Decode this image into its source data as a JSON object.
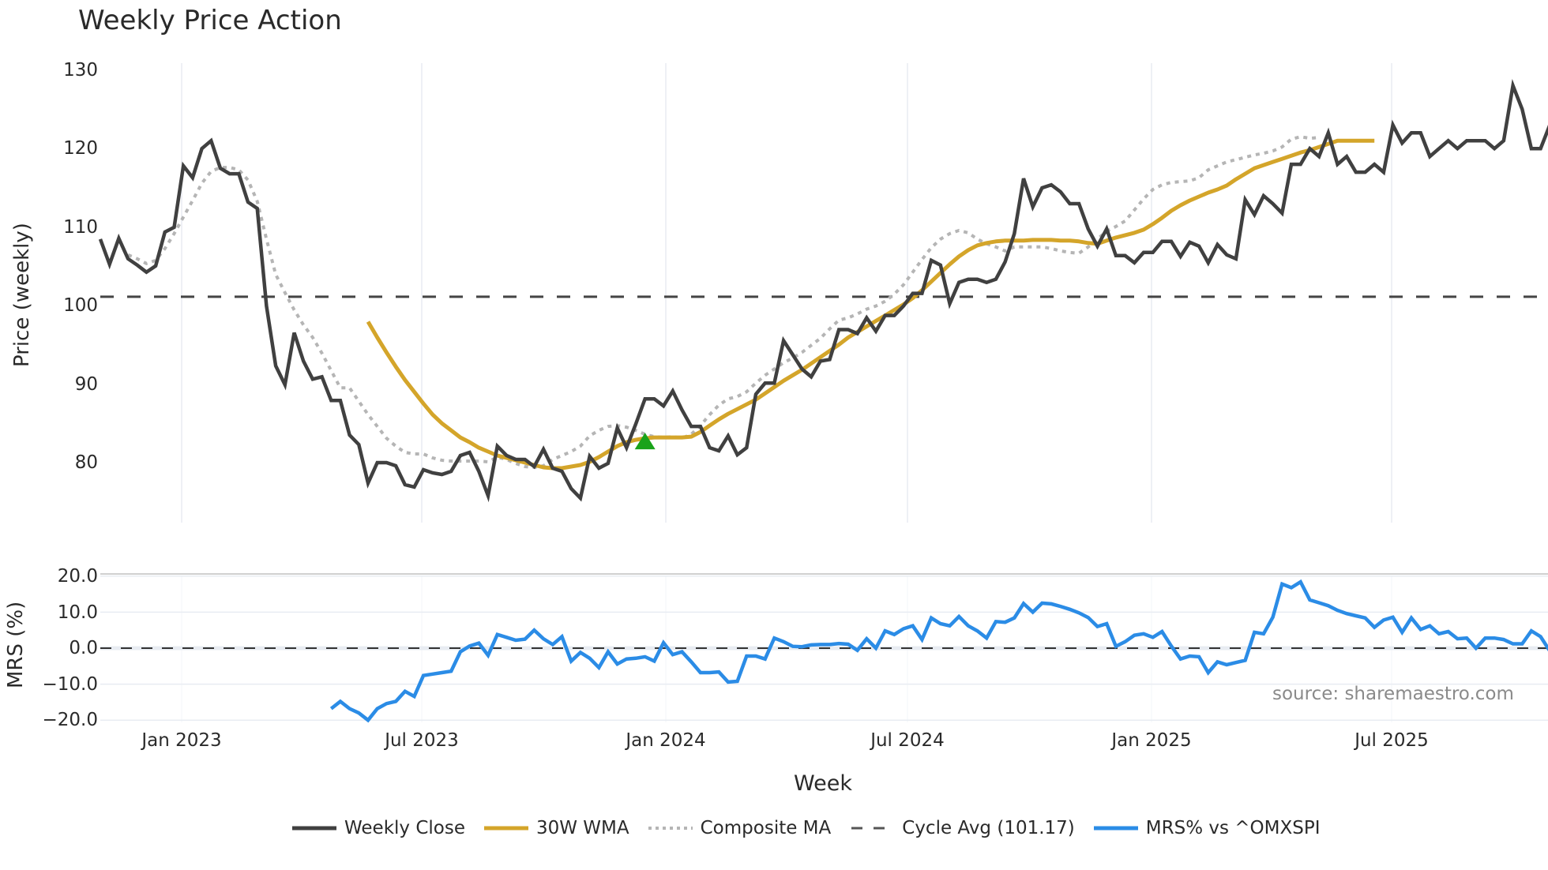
{
  "title": "Weekly Price Action",
  "source": "source: sharemaestro.com",
  "price_axis": {
    "title": "Price (weekly)",
    "ticks": [
      "130",
      "120",
      "110",
      "100",
      "90",
      "80"
    ]
  },
  "mrs_axis": {
    "title": "MRS (%)",
    "ticks": [
      "20.0",
      "10.0",
      "0.0",
      "−10.0",
      "−20.0"
    ]
  },
  "x_axis": {
    "title": "Week",
    "ticks": [
      "Jan 2023",
      "Jul 2023",
      "Jan 2024",
      "Jul 2024",
      "Jan 2025",
      "Jul 2025"
    ]
  },
  "legend": [
    {
      "label": "Weekly Close",
      "color": "#404040",
      "style": "solid"
    },
    {
      "label": "30W WMA",
      "color": "#D4A52A",
      "style": "solid"
    },
    {
      "label": "Composite MA",
      "color": "#B5B5B5",
      "style": "dotted"
    },
    {
      "label": "Cycle Avg (101.17)",
      "color": "#404040",
      "style": "dashed"
    },
    {
      "label": "MRS% vs ^OMXSPI",
      "color": "#2B8CE6",
      "style": "solid"
    }
  ],
  "colors": {
    "close": "#404040",
    "wma": "#D4A52A",
    "composite": "#B5B5B5",
    "cycle": "#444444",
    "mrs": "#2B8CE6",
    "signal": "#1AA31A",
    "grid": "#E8ECF2"
  },
  "chart_data": [
    {
      "type": "line",
      "title": "Weekly Price Action",
      "xlabel": "Week",
      "ylabel": "Price (weekly)",
      "ylim": [
        72,
        131
      ],
      "x_ticks": [
        "Jan 2023",
        "Jul 2023",
        "Jan 2024",
        "Jul 2024",
        "Jan 2025",
        "Jul 2025"
      ],
      "x_start_week_index": 0,
      "grid": true,
      "legend_position": "bottom",
      "series": [
        {
          "name": "Weekly Close",
          "start": 0,
          "values": [
            108.5,
            105.3,
            108.6,
            106.0,
            105.2,
            104.3,
            105.1,
            109.4,
            110.0,
            117.8,
            116.3,
            120.0,
            121.0,
            117.5,
            116.8,
            116.8,
            113.2,
            112.4,
            100.0,
            92.4,
            90.0,
            96.6,
            93.0,
            90.7,
            91.0,
            88.0,
            88.0,
            83.6,
            82.4,
            77.5,
            80.1,
            80.1,
            79.7,
            77.3,
            77.0,
            79.2,
            78.8,
            78.6,
            79.0,
            81.0,
            81.4,
            79.0,
            75.9,
            82.2,
            81.0,
            80.5,
            80.5,
            79.6,
            81.8,
            79.4,
            79.0,
            76.8,
            75.6,
            80.9,
            79.4,
            80.0,
            84.5,
            82.0,
            85.0,
            88.2,
            88.2,
            87.3,
            89.2,
            86.8,
            84.7,
            84.7,
            82.0,
            81.6,
            83.5,
            81.1,
            82.0,
            88.8,
            90.2,
            90.2,
            95.6,
            93.8,
            92.0,
            91.0,
            93.0,
            93.2,
            97.0,
            97.0,
            96.5,
            98.5,
            96.8,
            98.8,
            98.8,
            100.0,
            101.6,
            101.6,
            105.8,
            105.2,
            100.3,
            103.0,
            103.4,
            103.4,
            103.0,
            103.4,
            105.6,
            109.2,
            116.2,
            112.6,
            115.0,
            115.4,
            114.5,
            113.0,
            113.0,
            109.8,
            107.6,
            109.8,
            106.4,
            106.4,
            105.5,
            106.8,
            106.8,
            108.2,
            108.2,
            106.3,
            108.1,
            107.6,
            105.5,
            107.8,
            106.5,
            106.0,
            113.5,
            111.6,
            114.0,
            113.0,
            111.8,
            118.0,
            118.0,
            120.0,
            119.0,
            122.0,
            118.0,
            119.0,
            117.0,
            117.0,
            118.0,
            117.0,
            123.0,
            120.7,
            122.0,
            122.0,
            119.0,
            120.0,
            121.0,
            120.0,
            121.0,
            121.0,
            121.0,
            120.0,
            121.0,
            128.0,
            125.0,
            120.0,
            120.0,
            123.0
          ]
        },
        {
          "name": "30W WMA",
          "start": 29,
          "values": [
            98.0,
            96.0,
            94.1,
            92.3,
            90.6,
            89.1,
            87.6,
            86.2,
            85.1,
            84.2,
            83.3,
            82.7,
            82.0,
            81.5,
            81.0,
            80.7,
            80.4,
            80.1,
            79.8,
            79.5,
            79.4,
            79.4,
            79.6,
            79.8,
            80.2,
            80.8,
            81.5,
            82.2,
            82.7,
            83.0,
            83.2,
            83.3,
            83.3,
            83.3,
            83.3,
            83.4,
            84.0,
            84.8,
            85.6,
            86.3,
            86.9,
            87.5,
            88.1,
            88.9,
            89.7,
            90.5,
            91.2,
            91.9,
            92.7,
            93.5,
            94.3,
            95.1,
            96.0,
            96.7,
            97.4,
            98.1,
            98.8,
            99.5,
            100.2,
            101.0,
            102.0,
            103.1,
            104.2,
            105.3,
            106.3,
            107.1,
            107.7,
            108.0,
            108.2,
            108.3,
            108.3,
            108.3,
            108.4,
            108.4,
            108.4,
            108.3,
            108.3,
            108.2,
            108.0,
            107.9,
            108.3,
            108.7,
            109.0,
            109.3,
            109.7,
            110.4,
            111.2,
            112.1,
            112.8,
            113.4,
            113.9,
            114.4,
            114.8,
            115.3,
            116.1,
            116.8,
            117.5,
            117.9,
            118.3,
            118.7,
            119.1,
            119.5,
            119.8,
            120.2,
            120.6,
            121.0,
            121.0,
            121.0,
            121.0,
            121.0
          ]
        },
        {
          "name": "Composite MA",
          "start": 3,
          "values": [
            106.5,
            106.0,
            105.4,
            105.8,
            107.3,
            109.2,
            111.3,
            113.4,
            115.6,
            117.1,
            117.6,
            117.6,
            117.3,
            116.0,
            113.3,
            108.5,
            104.0,
            101.7,
            99.5,
            97.6,
            96.0,
            94.0,
            91.8,
            89.6,
            89.6,
            87.9,
            86.2,
            84.7,
            83.2,
            82.2,
            81.4,
            81.2,
            81.2,
            80.7,
            80.4,
            80.3,
            80.3,
            80.3,
            80.3,
            80.2,
            80.8,
            80.5,
            80.0,
            79.6,
            79.5,
            79.7,
            80.5,
            81.0,
            81.5,
            82.2,
            83.5,
            84.2,
            84.7,
            84.8,
            84.6,
            84.2,
            83.7,
            83.4,
            83.3,
            83.4,
            83.2,
            83.7,
            84.8,
            86.2,
            87.4,
            88.2,
            88.5,
            89.1,
            90.2,
            91.2,
            92.0,
            92.8,
            93.4,
            94.1,
            95.0,
            95.9,
            97.1,
            98.2,
            98.5,
            99.0,
            99.6,
            100.0,
            100.6,
            101.5,
            102.7,
            104.3,
            105.9,
            107.4,
            108.5,
            109.2,
            109.6,
            109.3,
            108.5,
            107.9,
            107.5,
            107.0,
            107.5,
            107.5,
            107.5,
            107.5,
            107.3,
            107.0,
            106.8,
            106.7,
            107.5,
            108.5,
            109.5,
            110.1,
            110.8,
            112.2,
            113.6,
            114.8,
            115.4,
            115.7,
            115.8,
            115.9,
            116.3,
            117.3,
            117.8,
            118.3,
            118.6,
            118.9,
            119.2,
            119.4,
            119.7,
            120.2,
            121.2,
            121.5,
            121.3,
            121.4
          ]
        },
        {
          "name": "Cycle Avg (101.17)",
          "constant": 101.17
        }
      ],
      "annotations": [
        {
          "type": "triangle-up",
          "color": "#1AA31A",
          "week": 59,
          "value": 82.8
        }
      ]
    },
    {
      "type": "line",
      "title": "",
      "xlabel": "Week",
      "ylabel": "MRS (%)",
      "ylim": [
        -21,
        21
      ],
      "y_ticks": [
        20,
        10,
        0,
        -10,
        -20
      ],
      "series": [
        {
          "name": "MRS% vs ^OMXSPI",
          "start": 25,
          "values": [
            -16.8,
            -14.8,
            -16.8,
            -18.0,
            -20.0,
            -16.8,
            -15.4,
            -14.8,
            -12.0,
            -13.4,
            -7.6,
            -7.2,
            -6.8,
            -6.4,
            -1.0,
            0.6,
            1.4,
            -2.0,
            3.8,
            3.0,
            2.2,
            2.5,
            5.0,
            2.6,
            1.0,
            3.2,
            -3.6,
            -1.2,
            -2.8,
            -5.4,
            -1.0,
            -4.4,
            -3.0,
            -2.8,
            -2.4,
            -3.6,
            1.5,
            -1.8,
            -1.0,
            -3.8,
            -6.8,
            -6.8,
            -6.6,
            -9.4,
            -9.2,
            -2.2,
            -2.2,
            -3.0,
            2.8,
            1.8,
            0.5,
            0.4,
            0.9,
            1.0,
            1.0,
            1.3,
            1.1,
            -0.6,
            2.6,
            0.0,
            4.8,
            3.8,
            5.4,
            6.2,
            2.4,
            8.4,
            6.8,
            6.2,
            8.8,
            6.2,
            4.8,
            2.8,
            7.4,
            7.2,
            8.4,
            12.4,
            10.0,
            12.5,
            12.3,
            11.6,
            10.8,
            9.8,
            8.5,
            6.0,
            6.8,
            0.5,
            1.8,
            3.6,
            4.0,
            3.0,
            4.6,
            0.6,
            -3.0,
            -2.2,
            -2.4,
            -6.8,
            -3.8,
            -4.6,
            -4.0,
            -3.4,
            4.4,
            4.0,
            8.6,
            17.8,
            16.8,
            18.4,
            13.4,
            12.6,
            11.8,
            10.5,
            9.6,
            9.0,
            8.4,
            5.8,
            7.8,
            8.6,
            4.4,
            8.4,
            5.2,
            6.2,
            4.0,
            4.6,
            2.6,
            2.8,
            0.0,
            2.8,
            2.8,
            2.4,
            1.2,
            1.2,
            4.8,
            3.2,
            -0.8,
            -2.2,
            -2.0
          ]
        },
        {
          "name": "Zero line",
          "constant": 0
        }
      ]
    }
  ]
}
